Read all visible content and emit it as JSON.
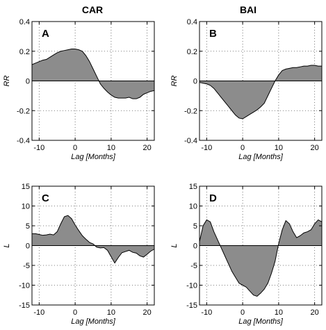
{
  "column_titles": [
    "CAR",
    "BAI"
  ],
  "chart_data": [
    {
      "type": "area",
      "panel": "A",
      "column": "CAR",
      "xlabel": "Lag [Months]",
      "ylabel": "RR",
      "xlim": [
        -12,
        22
      ],
      "ylim": [
        -0.4,
        0.4
      ],
      "xticks": [
        -10,
        0,
        10,
        20
      ],
      "yticks": [
        -0.4,
        -0.2,
        0,
        0.2,
        0.4
      ],
      "ytick_labels": [
        "-0.4",
        "-0.2",
        "0",
        "0.2",
        "0.4"
      ],
      "grid": true,
      "x": [
        -12,
        -11,
        -10,
        -9,
        -8,
        -7,
        -6,
        -5,
        -4,
        -3,
        -2,
        -1,
        0,
        1,
        2,
        3,
        4,
        5,
        6,
        7,
        8,
        9,
        10,
        11,
        12,
        13,
        14,
        15,
        16,
        17,
        18,
        19,
        20,
        21,
        22
      ],
      "y": [
        0.11,
        0.12,
        0.13,
        0.14,
        0.145,
        0.16,
        0.175,
        0.19,
        0.2,
        0.205,
        0.21,
        0.215,
        0.215,
        0.21,
        0.2,
        0.17,
        0.13,
        0.08,
        0.03,
        -0.02,
        -0.05,
        -0.075,
        -0.095,
        -0.11,
        -0.115,
        -0.115,
        -0.115,
        -0.11,
        -0.12,
        -0.12,
        -0.11,
        -0.09,
        -0.08,
        -0.07,
        -0.065
      ]
    },
    {
      "type": "area",
      "panel": "B",
      "column": "BAI",
      "xlabel": "Lag [Months]",
      "ylabel": "RR",
      "xlim": [
        -12,
        22
      ],
      "ylim": [
        -0.4,
        0.4
      ],
      "xticks": [
        -10,
        0,
        10,
        20
      ],
      "yticks": [
        -0.4,
        -0.2,
        0,
        0.2,
        0.4
      ],
      "ytick_labels": [
        "-0.4",
        "-0.2",
        "0",
        "0.2",
        "0.4"
      ],
      "grid": true,
      "x": [
        -12,
        -11,
        -10,
        -9,
        -8,
        -7,
        -6,
        -5,
        -4,
        -3,
        -2,
        -1,
        0,
        1,
        2,
        3,
        4,
        5,
        6,
        7,
        8,
        9,
        10,
        11,
        12,
        13,
        14,
        15,
        16,
        17,
        18,
        19,
        20,
        21,
        22
      ],
      "y": [
        -0.01,
        -0.015,
        -0.02,
        -0.03,
        -0.05,
        -0.08,
        -0.11,
        -0.14,
        -0.17,
        -0.2,
        -0.23,
        -0.25,
        -0.255,
        -0.24,
        -0.225,
        -0.21,
        -0.195,
        -0.175,
        -0.15,
        -0.1,
        -0.05,
        0.0,
        0.04,
        0.07,
        0.08,
        0.085,
        0.09,
        0.09,
        0.095,
        0.1,
        0.1,
        0.105,
        0.105,
        0.1,
        0.1
      ]
    },
    {
      "type": "area",
      "panel": "C",
      "column": "CAR",
      "xlabel": "Lag [Months]",
      "ylabel": "L",
      "xlim": [
        -12,
        22
      ],
      "ylim": [
        -15,
        15
      ],
      "xticks": [
        -10,
        0,
        10,
        20
      ],
      "yticks": [
        -15,
        -10,
        -5,
        0,
        5,
        10,
        15
      ],
      "ytick_labels": [
        "-15",
        "-10",
        "-5",
        "0",
        "5",
        "10",
        "15"
      ],
      "grid": true,
      "x": [
        -12,
        -11,
        -10,
        -9,
        -8,
        -7,
        -6,
        -5,
        -4,
        -3,
        -2,
        -1,
        0,
        1,
        2,
        3,
        4,
        5,
        6,
        7,
        8,
        9,
        10,
        11,
        12,
        13,
        14,
        15,
        16,
        17,
        18,
        19,
        20,
        21,
        22
      ],
      "y": [
        3.0,
        3.0,
        2.8,
        2.6,
        2.7,
        2.9,
        2.7,
        3.5,
        5.5,
        7.3,
        7.6,
        6.8,
        5.2,
        3.8,
        2.5,
        1.6,
        0.8,
        0.4,
        -0.4,
        -0.6,
        -0.5,
        -1.2,
        -2.8,
        -4.4,
        -3.0,
        -1.8,
        -1.5,
        -1.2,
        -1.7,
        -1.9,
        -2.6,
        -2.9,
        -2.2,
        -1.4,
        -0.9
      ]
    },
    {
      "type": "area",
      "panel": "D",
      "column": "BAI",
      "xlabel": "Lag [Months]",
      "ylabel": "L",
      "xlim": [
        -12,
        22
      ],
      "ylim": [
        -15,
        15
      ],
      "xticks": [
        -10,
        0,
        10,
        20
      ],
      "yticks": [
        -15,
        -10,
        -5,
        0,
        5,
        10,
        15
      ],
      "ytick_labels": [
        "-15",
        "-10",
        "-5",
        "0",
        "5",
        "10",
        "15"
      ],
      "grid": true,
      "x": [
        -12,
        -11,
        -10,
        -9,
        -8,
        -7,
        -6,
        -5,
        -4,
        -3,
        -2,
        -1,
        0,
        1,
        2,
        3,
        4,
        5,
        6,
        7,
        8,
        9,
        10,
        11,
        12,
        13,
        14,
        15,
        16,
        17,
        18,
        19,
        20,
        21,
        22
      ],
      "y": [
        1.0,
        5.0,
        6.5,
        6.0,
        3.5,
        1.5,
        -0.5,
        -2.5,
        -4.5,
        -6.5,
        -8.0,
        -9.5,
        -10.0,
        -10.5,
        -11.5,
        -12.5,
        -12.8,
        -12.0,
        -11.0,
        -9.5,
        -7.0,
        -4.0,
        0.5,
        4.0,
        6.3,
        5.5,
        3.5,
        2.0,
        2.5,
        3.2,
        3.5,
        4.0,
        5.5,
        6.5,
        6.0
      ]
    }
  ]
}
